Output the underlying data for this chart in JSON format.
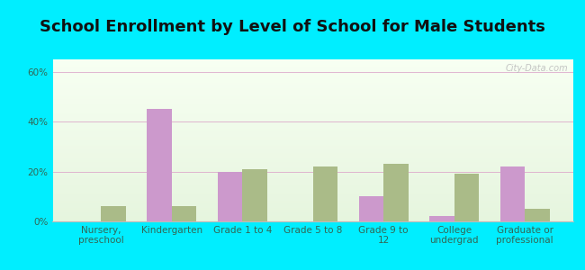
{
  "title": "School Enrollment by Level of School for Male Students",
  "categories": [
    "Nursery,\npreschool",
    "Kindergarten",
    "Grade 1 to 4",
    "Grade 5 to 8",
    "Grade 9 to\n12",
    "College\nundergrad",
    "Graduate or\nprofessional"
  ],
  "castalia": [
    0,
    45,
    20,
    0,
    10,
    2,
    22
  ],
  "north_carolina": [
    6,
    6,
    21,
    22,
    23,
    19,
    5
  ],
  "castalia_color": "#cc99cc",
  "nc_color": "#aabb88",
  "bg_color": "#00eeff",
  "ylim": [
    0,
    65
  ],
  "yticks": [
    0,
    20,
    40,
    60
  ],
  "ytick_labels": [
    "0%",
    "20%",
    "40%",
    "60%"
  ],
  "title_fontsize": 13,
  "tick_fontsize": 7.5,
  "legend_fontsize": 9,
  "bar_width": 0.35,
  "watermark": "City-Data.com"
}
